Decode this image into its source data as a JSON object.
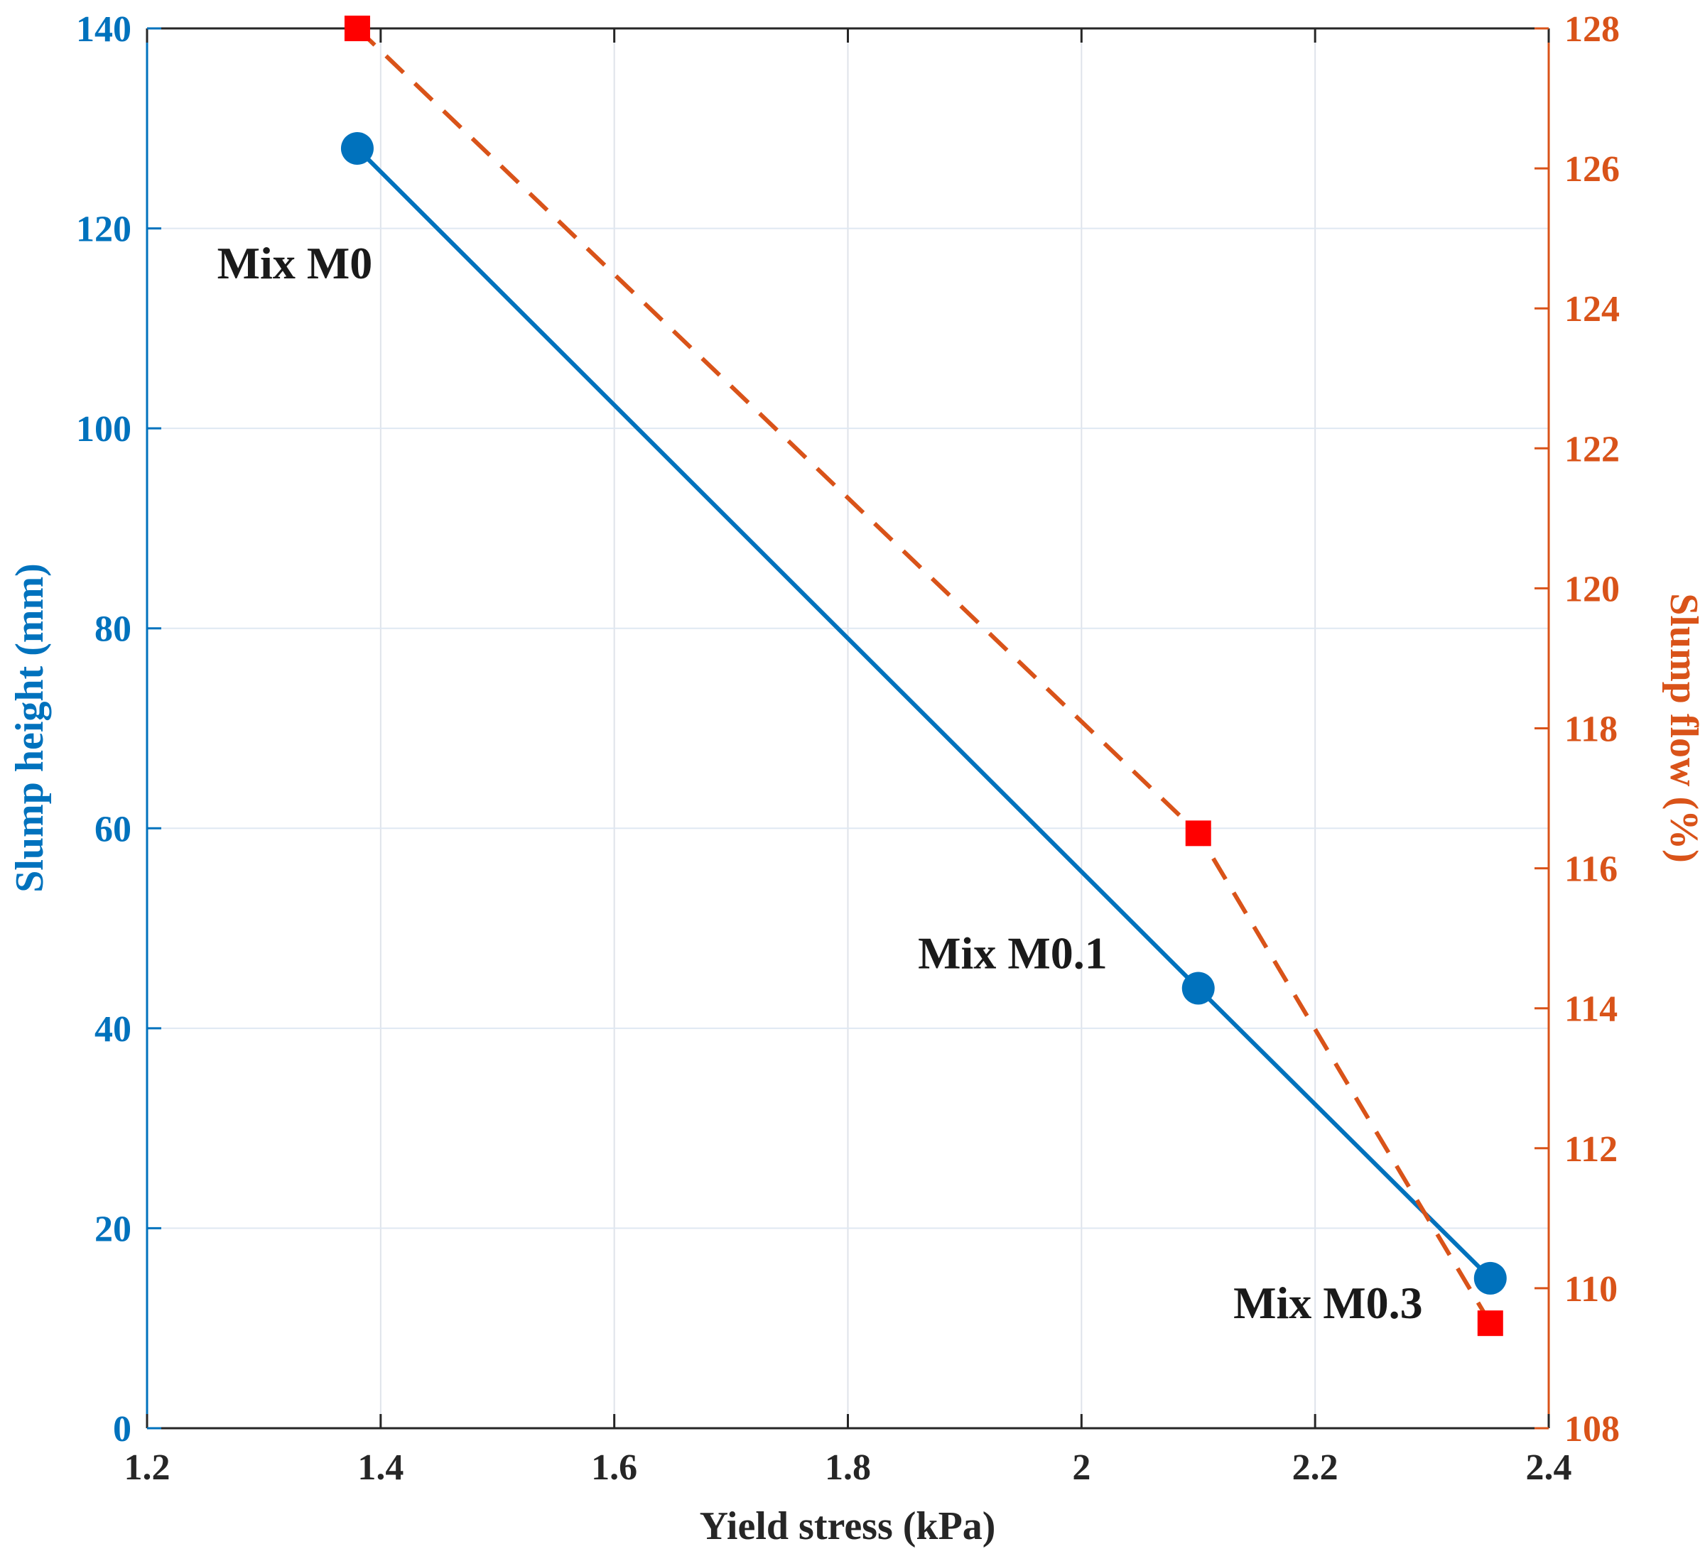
{
  "chart_data": {
    "type": "line",
    "xlabel": "Yield stress (kPa)",
    "ylabel_left": "Slump height (mm)",
    "ylabel_right": "Slump flow (%)",
    "xlim": [
      1.2,
      2.4
    ],
    "ylim_left": [
      0,
      140
    ],
    "ylim_right": [
      108,
      128
    ],
    "x_ticks": [
      1.2,
      1.4,
      1.6,
      1.8,
      2,
      2.2,
      2.4
    ],
    "x_tick_labels": [
      "1.2",
      "1.4",
      "1.6",
      "1.8",
      "2",
      "2.2",
      "2.4"
    ],
    "y_left_ticks": [
      0,
      20,
      40,
      60,
      80,
      100,
      120,
      140
    ],
    "y_left_tick_labels": [
      "0",
      "20",
      "40",
      "60",
      "80",
      "100",
      "120",
      "140"
    ],
    "y_right_ticks": [
      108,
      110,
      112,
      114,
      116,
      118,
      120,
      122,
      124,
      126,
      128
    ],
    "y_right_tick_labels": [
      "108",
      "110",
      "112",
      "114",
      "116",
      "118",
      "120",
      "122",
      "124",
      "126",
      "128"
    ],
    "grid": true,
    "series": [
      {
        "name": "Slump height",
        "axis": "left",
        "marker": "circle",
        "line_style": "solid",
        "color": "#0072BD",
        "x": [
          1.38,
          2.1,
          2.35
        ],
        "y": [
          128,
          44,
          15
        ]
      },
      {
        "name": "Slump flow",
        "axis": "right",
        "marker": "square",
        "line_style": "dashed",
        "color": "#D95319",
        "marker_color": "#FF0000",
        "x": [
          1.38,
          2.1,
          2.35
        ],
        "y": [
          128,
          116.5,
          109.5
        ]
      }
    ],
    "annotations": [
      {
        "text": "Mix M0",
        "x": 1.26,
        "y": 115
      },
      {
        "text": "Mix M0.1",
        "x": 1.86,
        "y": 46
      },
      {
        "text": "Mix M0.3",
        "x": 2.13,
        "y": 11
      }
    ]
  }
}
